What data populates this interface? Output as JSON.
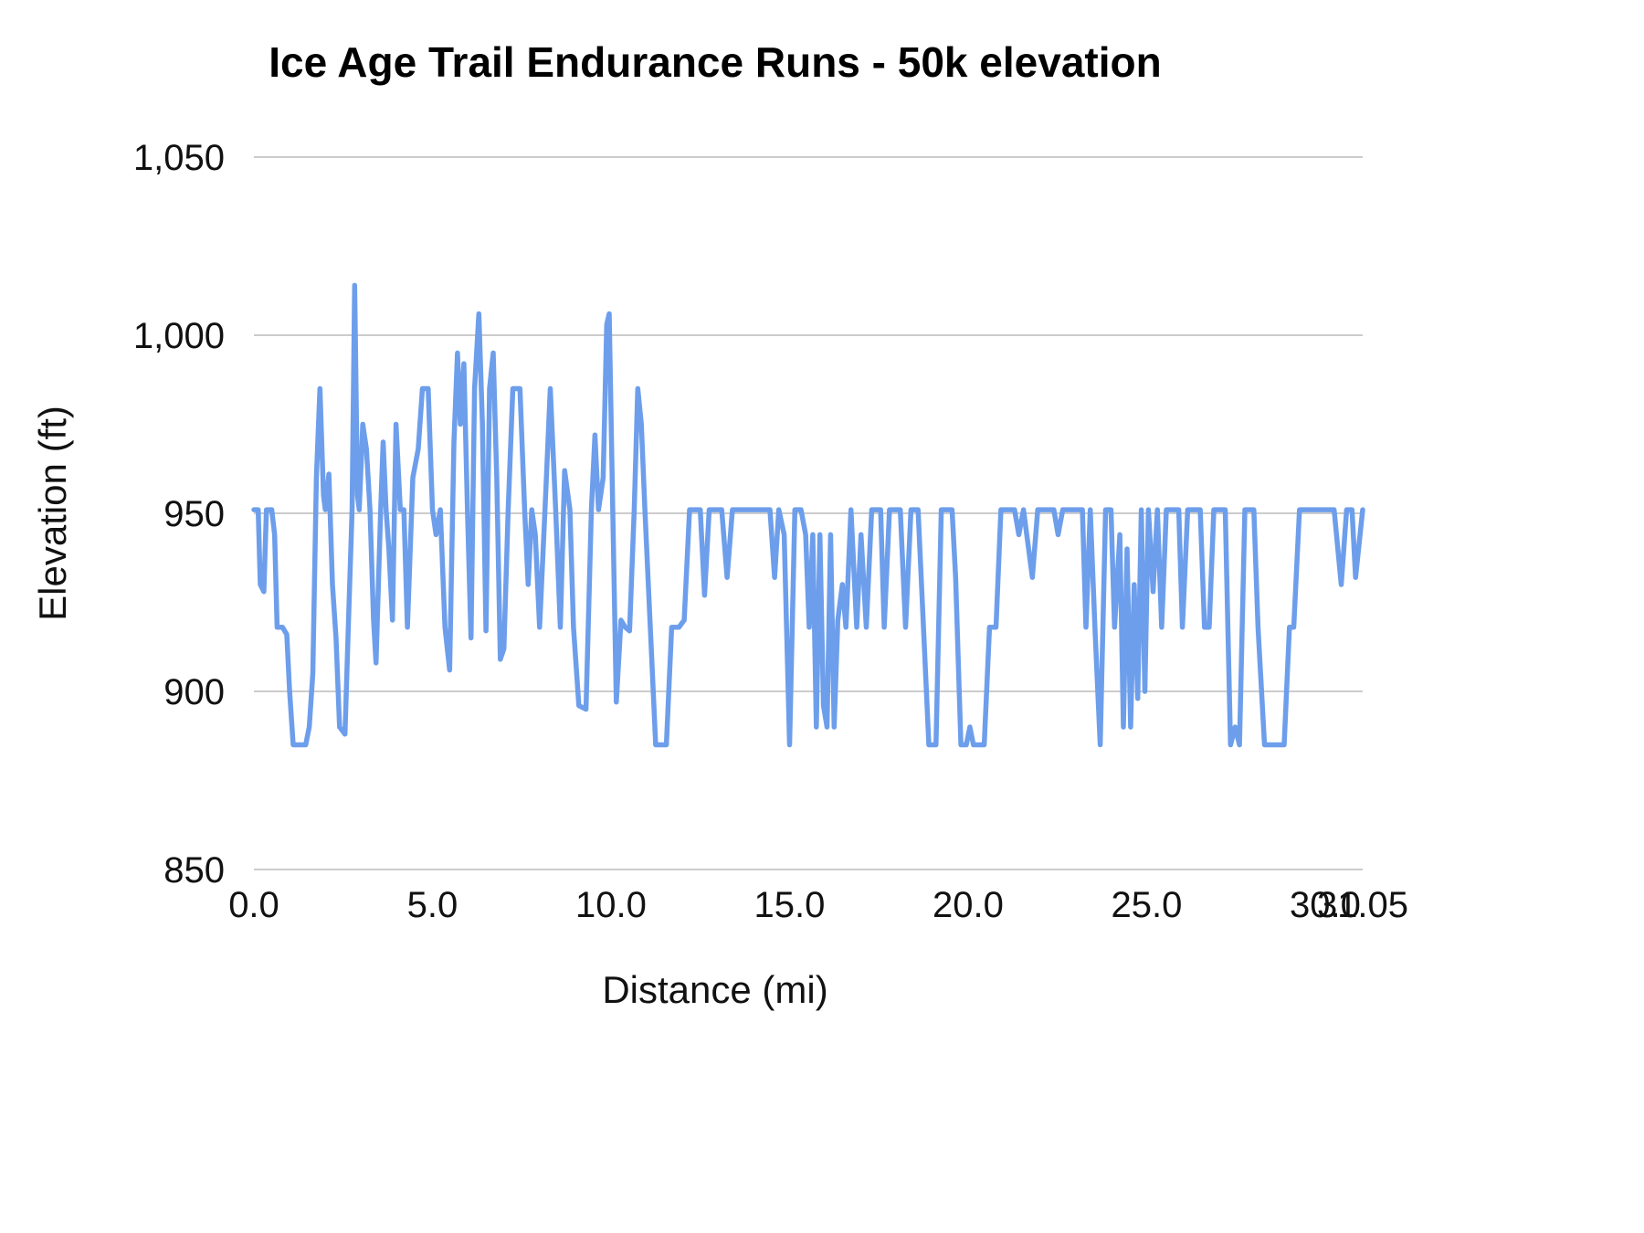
{
  "title": "Ice Age Trail Endurance Runs - 50k elevation",
  "chart_data": {
    "type": "line",
    "title": "Ice Age Trail Endurance Runs - 50k elevation",
    "xlabel": "Distance (mi)",
    "ylabel": "Elevation (ft)",
    "xlim": [
      0,
      31.05
    ],
    "ylim": [
      850,
      1050
    ],
    "grid": "horizontal-only",
    "legend": "none",
    "line_color": "#6d9eeb",
    "grid_color": "#cccccc",
    "x_ticks": [
      {
        "value": 0,
        "label": "0.0"
      },
      {
        "value": 5,
        "label": "5.0"
      },
      {
        "value": 10,
        "label": "10.0"
      },
      {
        "value": 15,
        "label": "15.0"
      },
      {
        "value": 20,
        "label": "20.0"
      },
      {
        "value": 25,
        "label": "25.0"
      },
      {
        "value": 30,
        "label": "30.0"
      },
      {
        "value": 31.05,
        "label": "31.05"
      }
    ],
    "y_ticks": [
      {
        "value": 850,
        "label": "850"
      },
      {
        "value": 900,
        "label": "900"
      },
      {
        "value": 950,
        "label": "950"
      },
      {
        "value": 1000,
        "label": "1,000"
      },
      {
        "value": 1050,
        "label": "1,050"
      }
    ],
    "series": [
      {
        "name": "Elevation",
        "points": [
          [
            0.0,
            951
          ],
          [
            0.12,
            951
          ],
          [
            0.18,
            930
          ],
          [
            0.28,
            928
          ],
          [
            0.35,
            951
          ],
          [
            0.5,
            951
          ],
          [
            0.58,
            944
          ],
          [
            0.65,
            918
          ],
          [
            0.8,
            918
          ],
          [
            0.92,
            916
          ],
          [
            1.0,
            900
          ],
          [
            1.1,
            885
          ],
          [
            1.45,
            885
          ],
          [
            1.55,
            890
          ],
          [
            1.65,
            905
          ],
          [
            1.75,
            960
          ],
          [
            1.85,
            985
          ],
          [
            1.95,
            955
          ],
          [
            2.0,
            951
          ],
          [
            2.1,
            961
          ],
          [
            2.2,
            930
          ],
          [
            2.3,
            915
          ],
          [
            2.4,
            890
          ],
          [
            2.55,
            888
          ],
          [
            2.65,
            920
          ],
          [
            2.75,
            951
          ],
          [
            2.82,
            1014
          ],
          [
            2.9,
            955
          ],
          [
            2.95,
            951
          ],
          [
            3.05,
            975
          ],
          [
            3.15,
            968
          ],
          [
            3.25,
            951
          ],
          [
            3.35,
            920
          ],
          [
            3.42,
            908
          ],
          [
            3.55,
            951
          ],
          [
            3.62,
            970
          ],
          [
            3.7,
            951
          ],
          [
            3.78,
            940
          ],
          [
            3.88,
            920
          ],
          [
            3.98,
            975
          ],
          [
            4.1,
            951
          ],
          [
            4.2,
            951
          ],
          [
            4.3,
            918
          ],
          [
            4.45,
            960
          ],
          [
            4.6,
            968
          ],
          [
            4.72,
            985
          ],
          [
            4.88,
            985
          ],
          [
            5.0,
            951
          ],
          [
            5.1,
            944
          ],
          [
            5.22,
            951
          ],
          [
            5.35,
            918
          ],
          [
            5.48,
            906
          ],
          [
            5.6,
            970
          ],
          [
            5.7,
            995
          ],
          [
            5.78,
            975
          ],
          [
            5.88,
            992
          ],
          [
            5.98,
            951
          ],
          [
            6.08,
            915
          ],
          [
            6.18,
            985
          ],
          [
            6.3,
            1006
          ],
          [
            6.4,
            975
          ],
          [
            6.5,
            917
          ],
          [
            6.6,
            985
          ],
          [
            6.7,
            995
          ],
          [
            6.8,
            960
          ],
          [
            6.9,
            909
          ],
          [
            7.0,
            912
          ],
          [
            7.12,
            951
          ],
          [
            7.25,
            985
          ],
          [
            7.45,
            985
          ],
          [
            7.58,
            951
          ],
          [
            7.68,
            930
          ],
          [
            7.78,
            951
          ],
          [
            7.88,
            944
          ],
          [
            8.0,
            918
          ],
          [
            8.15,
            951
          ],
          [
            8.3,
            985
          ],
          [
            8.45,
            951
          ],
          [
            8.58,
            918
          ],
          [
            8.7,
            962
          ],
          [
            8.85,
            951
          ],
          [
            8.95,
            918
          ],
          [
            9.1,
            896
          ],
          [
            9.3,
            895
          ],
          [
            9.45,
            951
          ],
          [
            9.55,
            972
          ],
          [
            9.65,
            951
          ],
          [
            9.78,
            960
          ],
          [
            9.88,
            1003
          ],
          [
            9.95,
            1006
          ],
          [
            10.05,
            951
          ],
          [
            10.15,
            897
          ],
          [
            10.28,
            920
          ],
          [
            10.4,
            918
          ],
          [
            10.52,
            917
          ],
          [
            10.65,
            951
          ],
          [
            10.75,
            985
          ],
          [
            10.85,
            975
          ],
          [
            10.95,
            951
          ],
          [
            11.1,
            918
          ],
          [
            11.25,
            885
          ],
          [
            11.55,
            885
          ],
          [
            11.7,
            918
          ],
          [
            11.9,
            918
          ],
          [
            12.05,
            920
          ],
          [
            12.2,
            951
          ],
          [
            12.5,
            951
          ],
          [
            12.62,
            927
          ],
          [
            12.75,
            951
          ],
          [
            13.1,
            951
          ],
          [
            13.25,
            932
          ],
          [
            13.4,
            951
          ],
          [
            14.45,
            951
          ],
          [
            14.58,
            932
          ],
          [
            14.7,
            951
          ],
          [
            14.85,
            944
          ],
          [
            15.0,
            885
          ],
          [
            15.15,
            951
          ],
          [
            15.32,
            951
          ],
          [
            15.45,
            944
          ],
          [
            15.55,
            918
          ],
          [
            15.65,
            944
          ],
          [
            15.75,
            890
          ],
          [
            15.85,
            944
          ],
          [
            15.95,
            896
          ],
          [
            16.05,
            890
          ],
          [
            16.15,
            944
          ],
          [
            16.25,
            890
          ],
          [
            16.35,
            920
          ],
          [
            16.48,
            930
          ],
          [
            16.58,
            918
          ],
          [
            16.72,
            951
          ],
          [
            16.88,
            918
          ],
          [
            17.0,
            944
          ],
          [
            17.15,
            918
          ],
          [
            17.3,
            951
          ],
          [
            17.55,
            951
          ],
          [
            17.65,
            918
          ],
          [
            17.8,
            951
          ],
          [
            18.1,
            951
          ],
          [
            18.25,
            918
          ],
          [
            18.4,
            951
          ],
          [
            18.6,
            951
          ],
          [
            18.75,
            918
          ],
          [
            18.9,
            885
          ],
          [
            19.1,
            885
          ],
          [
            19.25,
            951
          ],
          [
            19.55,
            951
          ],
          [
            19.65,
            932
          ],
          [
            19.8,
            885
          ],
          [
            19.95,
            885
          ],
          [
            20.05,
            890
          ],
          [
            20.15,
            885
          ],
          [
            20.45,
            885
          ],
          [
            20.6,
            918
          ],
          [
            20.78,
            918
          ],
          [
            20.92,
            951
          ],
          [
            21.3,
            951
          ],
          [
            21.42,
            944
          ],
          [
            21.55,
            951
          ],
          [
            21.8,
            932
          ],
          [
            21.95,
            951
          ],
          [
            22.4,
            951
          ],
          [
            22.52,
            944
          ],
          [
            22.65,
            951
          ],
          [
            23.2,
            951
          ],
          [
            23.3,
            918
          ],
          [
            23.42,
            951
          ],
          [
            23.55,
            918
          ],
          [
            23.7,
            885
          ],
          [
            23.85,
            951
          ],
          [
            24.0,
            951
          ],
          [
            24.1,
            918
          ],
          [
            24.25,
            944
          ],
          [
            24.35,
            890
          ],
          [
            24.45,
            940
          ],
          [
            24.55,
            890
          ],
          [
            24.65,
            930
          ],
          [
            24.75,
            898
          ],
          [
            24.85,
            951
          ],
          [
            24.95,
            900
          ],
          [
            25.05,
            951
          ],
          [
            25.18,
            928
          ],
          [
            25.3,
            951
          ],
          [
            25.42,
            918
          ],
          [
            25.55,
            951
          ],
          [
            25.9,
            951
          ],
          [
            26.0,
            918
          ],
          [
            26.15,
            951
          ],
          [
            26.5,
            951
          ],
          [
            26.62,
            918
          ],
          [
            26.75,
            918
          ],
          [
            26.88,
            951
          ],
          [
            27.2,
            951
          ],
          [
            27.35,
            885
          ],
          [
            27.48,
            890
          ],
          [
            27.6,
            885
          ],
          [
            27.75,
            951
          ],
          [
            28.0,
            951
          ],
          [
            28.12,
            918
          ],
          [
            28.3,
            885
          ],
          [
            28.85,
            885
          ],
          [
            29.0,
            918
          ],
          [
            29.12,
            918
          ],
          [
            29.28,
            951
          ],
          [
            29.95,
            951
          ],
          [
            30.25,
            951
          ],
          [
            30.45,
            930
          ],
          [
            30.6,
            951
          ],
          [
            30.75,
            951
          ],
          [
            30.85,
            932
          ],
          [
            31.05,
            951
          ]
        ]
      }
    ]
  }
}
